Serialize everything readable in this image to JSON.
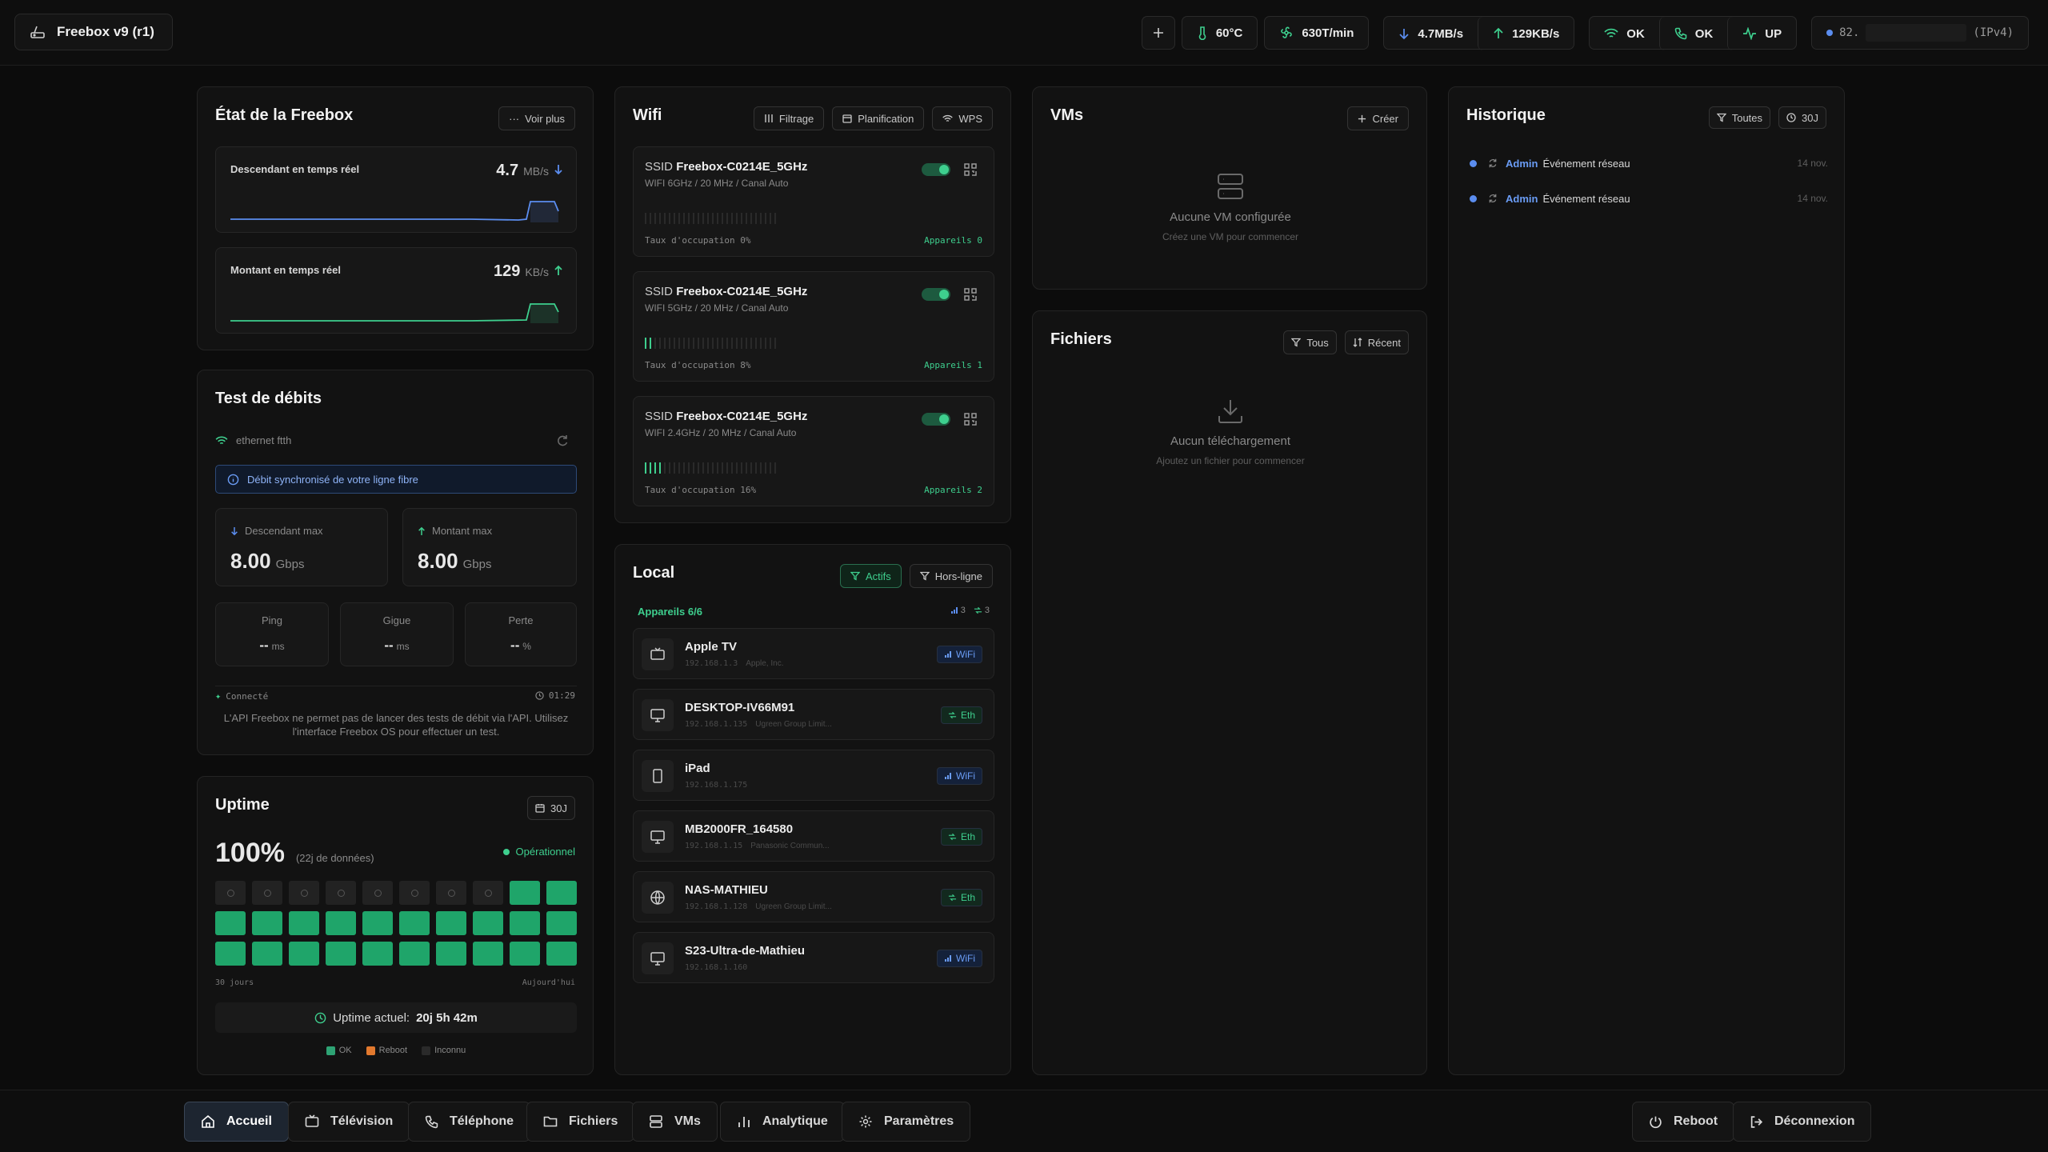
{
  "header": {
    "title": "Freebox v9 (r1)",
    "temp": "60°C",
    "fan": "630T/min",
    "down_rate": "4.7MB/s",
    "up_rate": "129KB/s",
    "wifi_status": "OK",
    "phone_status": "OK",
    "line_status": "UP",
    "ip_prefix": "82.",
    "ip_suffix": "(IPv4)"
  },
  "etat": {
    "title": "État de la Freebox",
    "more_label": "Voir plus",
    "down_label": "Descendant en temps réel",
    "down_value": "4.7",
    "down_unit": "MB/s",
    "up_label": "Montant en temps réel",
    "up_value": "129",
    "up_unit": "KB/s"
  },
  "test": {
    "title": "Test de débits",
    "connection": "ethernet ftth",
    "info": "Débit synchronisé de votre ligne fibre",
    "down_label": "Descendant max",
    "down_value": "8.00",
    "down_unit": "Gbps",
    "up_label": "Montant max",
    "up_value": "8.00",
    "up_unit": "Gbps",
    "ping_label": "Ping",
    "ping_value": "--",
    "ping_unit": "ms",
    "jitter_label": "Gigue",
    "jitter_value": "--",
    "jitter_unit": "ms",
    "loss_label": "Perte",
    "loss_value": "--",
    "loss_unit": "%",
    "status": "Connecté",
    "time": "01:29",
    "note": "L'API Freebox ne permet pas de lancer des tests de débit via l'API. Utilisez l'interface Freebox OS pour effectuer un test."
  },
  "uptime": {
    "title": "Uptime",
    "period_label": "30J",
    "percent": "100%",
    "data_days": "(22j de données)",
    "state": "Opérationnel",
    "axis_start": "30 jours",
    "axis_end": "Aujourd'hui",
    "current_label": "Uptime actuel:",
    "current_value": "20j 5h 42m",
    "legend_ok": "OK",
    "legend_reboot": "Reboot",
    "legend_unknown": "Inconnu",
    "days": [
      "unknown",
      "unknown",
      "unknown",
      "unknown",
      "unknown",
      "unknown",
      "unknown",
      "unknown",
      "ok",
      "ok",
      "ok",
      "ok",
      "ok",
      "ok",
      "ok",
      "ok",
      "ok",
      "ok",
      "ok",
      "ok",
      "ok",
      "ok",
      "ok",
      "ok",
      "ok",
      "ok",
      "ok",
      "ok",
      "ok",
      "ok"
    ]
  },
  "wifi": {
    "title": "Wifi",
    "btn_filter": "Filtrage",
    "btn_schedule": "Planification",
    "btn_wps": "WPS",
    "networks": [
      {
        "ssid_prefix": "SSID",
        "ssid": "Freebox-C0214E_5GHz",
        "details": "WIFI 6GHz / 20 MHz / Canal Auto",
        "usage": "Taux d'occupation 0%",
        "devices": "Appareils 0",
        "load": 0
      },
      {
        "ssid_prefix": "SSID",
        "ssid": "Freebox-C0214E_5GHz",
        "details": "WIFI 5GHz / 20 MHz / Canal Auto",
        "usage": "Taux d'occupation 8%",
        "devices": "Appareils 1",
        "load": 8
      },
      {
        "ssid_prefix": "SSID",
        "ssid": "Freebox-C0214E_5GHz",
        "details": "WIFI 2.4GHz / 20 MHz / Canal Auto",
        "usage": "Taux d'occupation 16%",
        "devices": "Appareils 2",
        "load": 16
      }
    ]
  },
  "local": {
    "title": "Local",
    "btn_active": "Actifs",
    "btn_offline": "Hors-ligne",
    "count": "Appareils 6/6",
    "wifi_count": "3",
    "eth_count": "3",
    "devices": [
      {
        "name": "Apple TV",
        "ip": "192.168.1.3",
        "vendor": "Apple, Inc.",
        "conn": "WiFi",
        "icon": "tv-icon"
      },
      {
        "name": "DESKTOP-IV66M91",
        "ip": "192.168.1.135",
        "vendor": "Ugreen Group Limit...",
        "conn": "Eth",
        "icon": "monitor-icon"
      },
      {
        "name": "iPad",
        "ip": "192.168.1.175",
        "vendor": "",
        "conn": "WiFi",
        "icon": "tablet-icon"
      },
      {
        "name": "MB2000FR_164580",
        "ip": "192.168.1.15",
        "vendor": "Panasonic Commun...",
        "conn": "Eth",
        "icon": "monitor-icon"
      },
      {
        "name": "NAS-MATHIEU",
        "ip": "192.168.1.128",
        "vendor": "Ugreen Group Limit...",
        "conn": "Eth",
        "icon": "globe-icon"
      },
      {
        "name": "S23-Ultra-de-Mathieu",
        "ip": "192.168.1.160",
        "vendor": "",
        "conn": "WiFi",
        "icon": "monitor-icon"
      }
    ]
  },
  "vms": {
    "title": "VMs",
    "create_label": "Créer",
    "empty": "Aucune VM configurée",
    "hint": "Créez une VM pour commencer"
  },
  "files": {
    "title": "Fichiers",
    "btn_all": "Tous",
    "btn_recent": "Récent",
    "empty": "Aucun téléchargement",
    "hint": "Ajoutez un fichier pour commencer"
  },
  "history": {
    "title": "Historique",
    "btn_all": "Toutes",
    "btn_period": "30J",
    "events": [
      {
        "user": "Admin",
        "text": "Événement réseau",
        "date": "14 nov."
      },
      {
        "user": "Admin",
        "text": "Événement réseau",
        "date": "14 nov."
      }
    ]
  },
  "nav": {
    "home": "Accueil",
    "tv": "Télévision",
    "phone": "Téléphone",
    "files": "Fichiers",
    "vms": "VMs",
    "analytics": "Analytique",
    "settings": "Paramètres",
    "reboot": "Reboot",
    "logout": "Déconnexion"
  },
  "colors": {
    "accent_green": "#3ecf8e",
    "accent_blue": "#5b8def",
    "reboot_orange": "#e2792e"
  }
}
